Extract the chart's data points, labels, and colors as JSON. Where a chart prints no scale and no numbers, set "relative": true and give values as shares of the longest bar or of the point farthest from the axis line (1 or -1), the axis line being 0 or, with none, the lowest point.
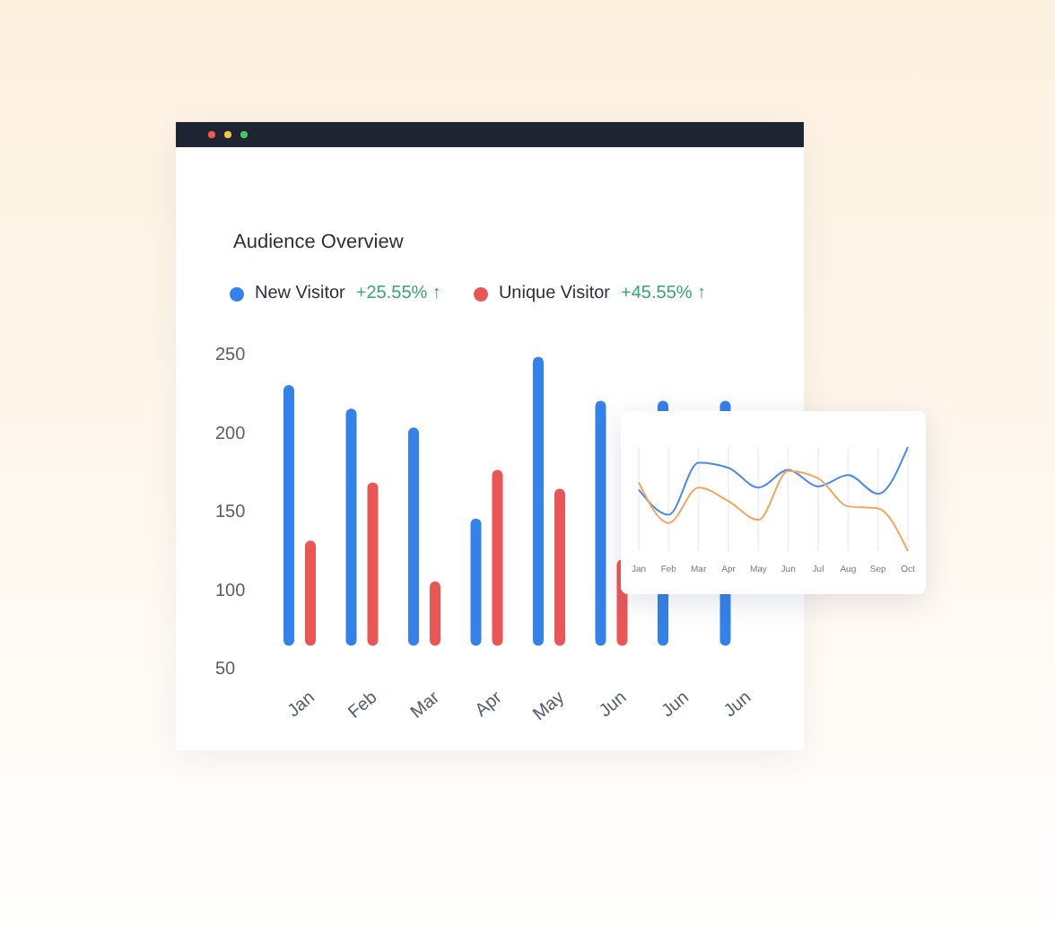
{
  "chart_data": [
    {
      "type": "bar",
      "title": "Audience Overview",
      "categories": [
        "Jan",
        "Feb",
        "Mar",
        "Apr",
        "May",
        "Jun",
        "Jun",
        "Jun"
      ],
      "series": [
        {
          "name": "New Visitor",
          "color": "#3381ea",
          "base": [
            64,
            64,
            64,
            64,
            64,
            64,
            64,
            64
          ],
          "values": [
            166,
            151,
            139,
            81,
            184,
            156,
            156,
            156
          ]
        },
        {
          "name": "Unique Visitor",
          "color": "#ea5656",
          "base": [
            64,
            64,
            64,
            64,
            64,
            64,
            null,
            null
          ],
          "values": [
            67,
            104,
            41,
            112,
            100,
            55,
            null,
            null
          ]
        }
      ],
      "annotations": [
        "+25.55% ↑",
        "+45.55% ↑"
      ],
      "ylim": [
        50,
        250
      ],
      "yticks": [
        50,
        100,
        150,
        200,
        250
      ],
      "legend": "top left",
      "grid": false
    },
    {
      "type": "line",
      "relative": true,
      "categories": [
        "Jan",
        "Feb",
        "Mar",
        "Apr",
        "May",
        "Jun",
        "Jul",
        "Aug",
        "Sep",
        "Oct"
      ],
      "series": [
        {
          "color": "#4a8af0",
          "values": [
            0.59,
            0.35,
            0.85,
            0.8,
            0.61,
            0.78,
            0.62,
            0.73,
            0.55,
            1
          ]
        },
        {
          "color": "#f5a55a",
          "values": [
            0.66,
            0.27,
            0.61,
            0.48,
            0.3,
            0.77,
            0.7,
            0.43,
            0.41,
            0
          ]
        }
      ],
      "grid": "x"
    }
  ]
}
